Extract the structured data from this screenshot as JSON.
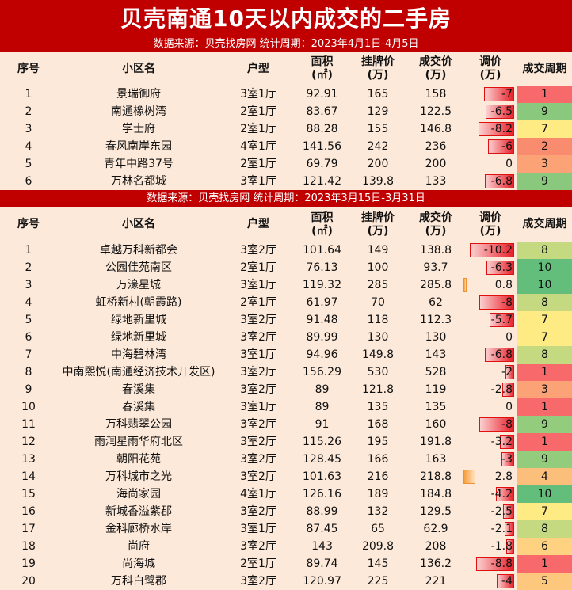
{
  "title": "贝壳南通10天以内成交的二手房",
  "subtitle1": "数据来源：贝壳找房网      统计周期：2023年4月1日-4月5日",
  "subtitle2": "数据来源：贝壳找房网      统计周期：2023年3月15日-3月31日",
  "headers": {
    "seq": "序号",
    "name": "小区名",
    "type": "户型",
    "area1": "面积",
    "area2": "(㎡)",
    "list1": "挂牌价",
    "list2": "(万)",
    "deal1": "成交价",
    "deal2": "(万)",
    "diff1": "调价",
    "diff2": "(万)",
    "cycle": "成交周期"
  },
  "table1": [
    {
      "seq": "1",
      "name": "景瑞御府",
      "type": "3室1厅",
      "area": "92.91",
      "list": "165",
      "deal": "158",
      "diff": "-7",
      "diff_num": -7,
      "cycle": "1",
      "cycle_color": "#f8696b"
    },
    {
      "seq": "2",
      "name": "南通橡树湾",
      "type": "2室1厅",
      "area": "83.67",
      "list": "129",
      "deal": "122.5",
      "diff": "-6.5",
      "diff_num": -6.5,
      "cycle": "9",
      "cycle_color": "#8ac97d"
    },
    {
      "seq": "3",
      "name": "学士府",
      "type": "2室1厅",
      "area": "88.28",
      "list": "155",
      "deal": "146.8",
      "diff": "-8.2",
      "diff_num": -8.2,
      "cycle": "7",
      "cycle_color": "#ffeb84"
    },
    {
      "seq": "4",
      "name": "春风南岸东园",
      "type": "4室1厅",
      "area": "141.56",
      "list": "242",
      "deal": "236",
      "diff": "-6",
      "diff_num": -6,
      "cycle": "2",
      "cycle_color": "#f98b6f"
    },
    {
      "seq": "5",
      "name": "青年中路37号",
      "type": "2室1厅",
      "area": "69.79",
      "list": "200",
      "deal": "200",
      "diff": "0",
      "diff_num": 0,
      "cycle": "3",
      "cycle_color": "#fba276"
    },
    {
      "seq": "6",
      "name": "万林名都城",
      "type": "3室1厅",
      "area": "121.42",
      "list": "139.8",
      "deal": "133",
      "diff": "-6.8",
      "diff_num": -6.8,
      "cycle": "9",
      "cycle_color": "#8ac97d"
    }
  ],
  "table2": [
    {
      "seq": "1",
      "name": "卓越万科新都会",
      "type": "3室2厅",
      "area": "101.64",
      "list": "149",
      "deal": "138.8",
      "diff": "-10.2",
      "diff_num": -10.2,
      "cycle": "8",
      "cycle_color": "#c5d981"
    },
    {
      "seq": "2",
      "name": "公园佳苑南区",
      "type": "2室1厅",
      "area": "76.13",
      "list": "100",
      "deal": "93.7",
      "diff": "-6.3",
      "diff_num": -6.3,
      "cycle": "10",
      "cycle_color": "#63be7b"
    },
    {
      "seq": "3",
      "name": "万濠星城",
      "type": "3室1厅",
      "area": "119.32",
      "list": "285",
      "deal": "285.8",
      "diff": "0.8",
      "diff_num": 0.8,
      "cycle": "10",
      "cycle_color": "#63be7b"
    },
    {
      "seq": "4",
      "name": "虹桥新村(朝霞路)",
      "type": "2室1厅",
      "area": "61.97",
      "list": "70",
      "deal": "62",
      "diff": "-8",
      "diff_num": -8,
      "cycle": "8",
      "cycle_color": "#c5d981"
    },
    {
      "seq": "5",
      "name": "绿地新里城",
      "type": "3室2厅",
      "area": "91.48",
      "list": "118",
      "deal": "112.3",
      "diff": "-5.7",
      "diff_num": -5.7,
      "cycle": "7",
      "cycle_color": "#ffeb84"
    },
    {
      "seq": "6",
      "name": "绿地新里城",
      "type": "3室2厅",
      "area": "89.99",
      "list": "130",
      "deal": "130",
      "diff": "0",
      "diff_num": 0,
      "cycle": "7",
      "cycle_color": "#ffeb84"
    },
    {
      "seq": "7",
      "name": "中海碧林湾",
      "type": "3室1厅",
      "area": "94.96",
      "list": "149.8",
      "deal": "143",
      "diff": "-6.8",
      "diff_num": -6.8,
      "cycle": "8",
      "cycle_color": "#c5d981"
    },
    {
      "seq": "8",
      "name": "中南熙悦(南通经济技术开发区)",
      "type": "3室2厅",
      "area": "156.29",
      "list": "530",
      "deal": "528",
      "diff": "-2",
      "diff_num": -2,
      "cycle": "1",
      "cycle_color": "#f8696b"
    },
    {
      "seq": "9",
      "name": "春溪集",
      "type": "3室2厅",
      "area": "89",
      "list": "121.8",
      "deal": "119",
      "diff": "-2.8",
      "diff_num": -2.8,
      "cycle": "3",
      "cycle_color": "#fba276"
    },
    {
      "seq": "10",
      "name": "春溪集",
      "type": "3室1厅",
      "area": "89",
      "list": "135",
      "deal": "135",
      "diff": "0",
      "diff_num": 0,
      "cycle": "1",
      "cycle_color": "#f8696b"
    },
    {
      "seq": "11",
      "name": "万科翡翠公园",
      "type": "3室2厅",
      "area": "91",
      "list": "168",
      "deal": "160",
      "diff": "-8",
      "diff_num": -8,
      "cycle": "9",
      "cycle_color": "#94cc7e"
    },
    {
      "seq": "12",
      "name": "雨润星雨华府北区",
      "type": "3室2厅",
      "area": "115.26",
      "list": "195",
      "deal": "191.8",
      "diff": "-3.2",
      "diff_num": -3.2,
      "cycle": "1",
      "cycle_color": "#f8696b"
    },
    {
      "seq": "13",
      "name": "朝阳花苑",
      "type": "3室2厅",
      "area": "128.45",
      "list": "166",
      "deal": "163",
      "diff": "-3",
      "diff_num": -3,
      "cycle": "9",
      "cycle_color": "#94cc7e"
    },
    {
      "seq": "14",
      "name": "万科城市之光",
      "type": "3室2厅",
      "area": "101.63",
      "list": "216",
      "deal": "218.8",
      "diff": "2.8",
      "diff_num": 2.8,
      "cycle": "4",
      "cycle_color": "#fcbf7b"
    },
    {
      "seq": "15",
      "name": "海尚家园",
      "type": "4室1厅",
      "area": "126.16",
      "list": "189",
      "deal": "184.8",
      "diff": "-4.2",
      "diff_num": -4.2,
      "cycle": "10",
      "cycle_color": "#63be7b"
    },
    {
      "seq": "16",
      "name": "新城香溢紫郡",
      "type": "3室2厅",
      "area": "88.99",
      "list": "132",
      "deal": "129.5",
      "diff": "-2.5",
      "diff_num": -2.5,
      "cycle": "7",
      "cycle_color": "#ffeb84"
    },
    {
      "seq": "17",
      "name": "金科廊桥水岸",
      "type": "3室1厅",
      "area": "87.45",
      "list": "65",
      "deal": "62.9",
      "diff": "-2.1",
      "diff_num": -2.1,
      "cycle": "8",
      "cycle_color": "#c5d981"
    },
    {
      "seq": "18",
      "name": "尚府",
      "type": "3室2厅",
      "area": "143",
      "list": "209.8",
      "deal": "208",
      "diff": "-1.8",
      "diff_num": -1.8,
      "cycle": "6",
      "cycle_color": "#fed280"
    },
    {
      "seq": "19",
      "name": "尚海城",
      "type": "2室1厅",
      "area": "89.74",
      "list": "145",
      "deal": "136.2",
      "diff": "-8.8",
      "diff_num": -8.8,
      "cycle": "1",
      "cycle_color": "#f8696b"
    },
    {
      "seq": "20",
      "name": "万科白鹭郡",
      "type": "3室2厅",
      "area": "120.97",
      "list": "225",
      "deal": "221",
      "diff": "-4",
      "diff_num": -4,
      "cycle": "5",
      "cycle_color": "#fdc87d"
    }
  ]
}
